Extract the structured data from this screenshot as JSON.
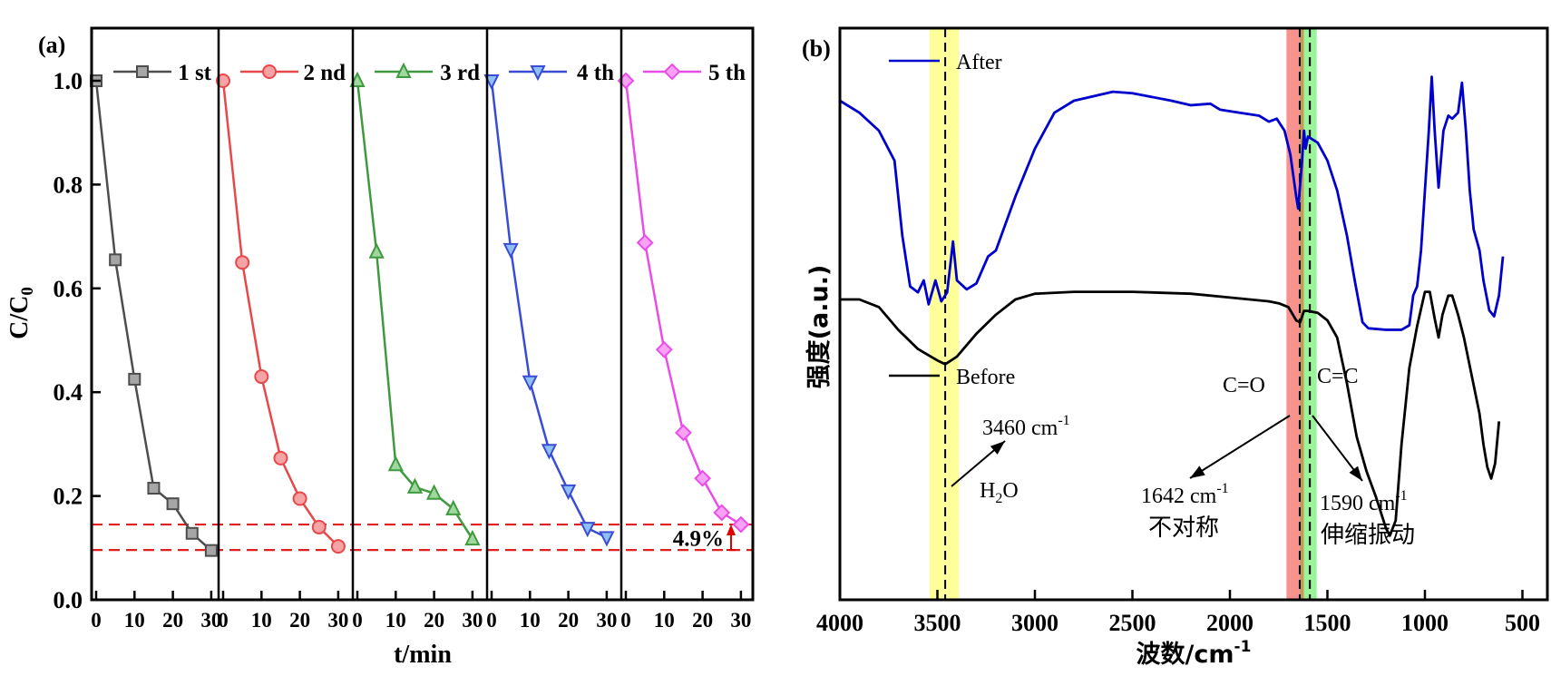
{
  "chart_data": [
    {
      "panel": "(a)",
      "type": "line",
      "ylabel": "C/C0",
      "xlabel": "t/min",
      "ylim": [
        0.0,
        1.1
      ],
      "yticks": [
        "0.0",
        "0.2",
        "0.4",
        "0.6",
        "0.8",
        "1.0"
      ],
      "xticks": [
        "0",
        "10",
        "20",
        "30"
      ],
      "x": [
        0,
        5,
        10,
        15,
        20,
        25,
        30
      ],
      "legend_position": "top-right of each subpanel",
      "series": [
        {
          "name": "1 st",
          "color": "#4d4d4d",
          "fill": "#a6a6a6",
          "marker": "square",
          "values": [
            1.0,
            0.655,
            0.425,
            0.215,
            0.185,
            0.128,
            0.095
          ]
        },
        {
          "name": "2 nd",
          "color": "#e8484a",
          "fill": "#f5a3a4",
          "marker": "circle",
          "values": [
            1.0,
            0.65,
            0.43,
            0.273,
            0.195,
            0.14,
            0.103
          ]
        },
        {
          "name": "3 rd",
          "color": "#3f9a3f",
          "fill": "#9fd89f",
          "marker": "triangle-up",
          "values": [
            1.0,
            0.67,
            0.26,
            0.217,
            0.205,
            0.175,
            0.117
          ]
        },
        {
          "name": "4 th",
          "color": "#3a4cd6",
          "fill": "#8fc0f5",
          "marker": "triangle-down",
          "values": [
            1.0,
            0.675,
            0.42,
            0.288,
            0.21,
            0.138,
            0.12
          ]
        },
        {
          "name": "5 th",
          "color": "#ea4ce8",
          "fill": "#f7a2f4",
          "marker": "diamond",
          "values": [
            1.0,
            0.688,
            0.482,
            0.322,
            0.234,
            0.168,
            0.145
          ]
        }
      ],
      "reference_lines": {
        "values": [
          0.145,
          0.096
        ],
        "color": "#e02020",
        "style": "dashed"
      },
      "annotation": {
        "text": "4.9%",
        "color": "#e00000"
      }
    },
    {
      "panel": "(b)",
      "type": "line",
      "xlabel": "波数/cm-1",
      "ylabel": "强度(a.u.)",
      "xlim": [
        4000,
        440
      ],
      "xticks": [
        "4000",
        "3500",
        "3000",
        "2500",
        "2000",
        "1500",
        "1000",
        "500"
      ],
      "legend": [
        {
          "name": "After",
          "color": "#0000cc"
        },
        {
          "name": "Before",
          "color": "#000000"
        }
      ],
      "series": [
        {
          "name": "After",
          "color": "#0000cc",
          "points": [
            [
              4000,
              0.9
            ],
            [
              3900,
              0.86
            ],
            [
              3800,
              0.8
            ],
            [
              3720,
              0.7
            ],
            [
              3680,
              0.45
            ],
            [
              3640,
              0.28
            ],
            [
              3600,
              0.26
            ],
            [
              3570,
              0.3
            ],
            [
              3545,
              0.22
            ],
            [
              3510,
              0.3
            ],
            [
              3480,
              0.23
            ],
            [
              3450,
              0.26
            ],
            [
              3420,
              0.43
            ],
            [
              3400,
              0.3
            ],
            [
              3350,
              0.27
            ],
            [
              3300,
              0.29
            ],
            [
              3240,
              0.38
            ],
            [
              3200,
              0.4
            ],
            [
              3100,
              0.58
            ],
            [
              3000,
              0.74
            ],
            [
              2900,
              0.86
            ],
            [
              2800,
              0.9
            ],
            [
              2600,
              0.93
            ],
            [
              2500,
              0.925
            ],
            [
              2300,
              0.9
            ],
            [
              2200,
              0.885
            ],
            [
              2100,
              0.89
            ],
            [
              2050,
              0.87
            ],
            [
              1950,
              0.86
            ],
            [
              1850,
              0.85
            ],
            [
              1800,
              0.83
            ],
            [
              1760,
              0.84
            ],
            [
              1720,
              0.8
            ],
            [
              1690,
              0.72
            ],
            [
              1660,
              0.58
            ],
            [
              1650,
              0.54
            ],
            [
              1640,
              0.62
            ],
            [
              1630,
              0.7
            ],
            [
              1620,
              0.8
            ],
            [
              1612,
              0.74
            ],
            [
              1600,
              0.78
            ],
            [
              1550,
              0.76
            ],
            [
              1500,
              0.7
            ],
            [
              1450,
              0.6
            ],
            [
              1400,
              0.45
            ],
            [
              1360,
              0.3
            ],
            [
              1320,
              0.16
            ],
            [
              1290,
              0.14
            ],
            [
              1200,
              0.135
            ],
            [
              1120,
              0.135
            ],
            [
              1080,
              0.15
            ],
            [
              1060,
              0.25
            ],
            [
              1040,
              0.28
            ],
            [
              1020,
              0.4
            ],
            [
              1000,
              0.6
            ],
            [
              980,
              0.8
            ],
            [
              965,
              0.98
            ],
            [
              950,
              0.8
            ],
            [
              930,
              0.61
            ],
            [
              905,
              0.8
            ],
            [
              880,
              0.85
            ],
            [
              860,
              0.84
            ],
            [
              830,
              0.86
            ],
            [
              810,
              0.96
            ],
            [
              790,
              0.8
            ],
            [
              770,
              0.6
            ],
            [
              750,
              0.47
            ],
            [
              720,
              0.4
            ],
            [
              700,
              0.3
            ],
            [
              670,
              0.2
            ],
            [
              645,
              0.18
            ],
            [
              620,
              0.25
            ],
            [
              600,
              0.38
            ]
          ]
        },
        {
          "name": "Before",
          "color": "#000000",
          "points": [
            [
              4000,
              0.0
            ],
            [
              3900,
              0.0
            ],
            [
              3800,
              -0.02
            ],
            [
              3700,
              -0.08
            ],
            [
              3600,
              -0.13
            ],
            [
              3500,
              -0.16
            ],
            [
              3460,
              -0.17
            ],
            [
              3400,
              -0.15
            ],
            [
              3300,
              -0.09
            ],
            [
              3200,
              -0.04
            ],
            [
              3100,
              0.0
            ],
            [
              3000,
              0.015
            ],
            [
              2800,
              0.02
            ],
            [
              2500,
              0.02
            ],
            [
              2200,
              0.015
            ],
            [
              2000,
              0.005
            ],
            [
              1800,
              -0.005
            ],
            [
              1750,
              -0.01
            ],
            [
              1700,
              -0.02
            ],
            [
              1660,
              -0.055
            ],
            [
              1640,
              -0.06
            ],
            [
              1620,
              -0.03
            ],
            [
              1600,
              -0.03
            ],
            [
              1550,
              -0.035
            ],
            [
              1500,
              -0.055
            ],
            [
              1450,
              -0.1
            ],
            [
              1400,
              -0.22
            ],
            [
              1350,
              -0.36
            ],
            [
              1300,
              -0.45
            ],
            [
              1250,
              -0.52
            ],
            [
              1200,
              -0.6
            ],
            [
              1180,
              -0.62
            ],
            [
              1150,
              -0.58
            ],
            [
              1120,
              -0.38
            ],
            [
              1080,
              -0.18
            ],
            [
              1040,
              -0.07
            ],
            [
              1000,
              0.02
            ],
            [
              975,
              0.02
            ],
            [
              950,
              -0.05
            ],
            [
              930,
              -0.1
            ],
            [
              910,
              -0.04
            ],
            [
              880,
              0.01
            ],
            [
              860,
              0.01
            ],
            [
              830,
              -0.04
            ],
            [
              800,
              -0.1
            ],
            [
              760,
              -0.2
            ],
            [
              720,
              -0.3
            ],
            [
              700,
              -0.38
            ],
            [
              680,
              -0.44
            ],
            [
              660,
              -0.47
            ],
            [
              640,
              -0.43
            ],
            [
              620,
              -0.32
            ]
          ]
        }
      ],
      "highlight_bands": [
        {
          "range": [
            3540,
            3390
          ],
          "color": "#ffff99",
          "label": "H2O",
          "center": 3460
        },
        {
          "range": [
            1710,
            1642
          ],
          "color": "#f7928f",
          "label": "C=O",
          "center": 1642
        },
        {
          "range": [
            1642,
            1620
          ],
          "color": "#c49a5a"
        },
        {
          "range": [
            1620,
            1555
          ],
          "color": "#99f599",
          "label": "C=C",
          "center": 1590
        }
      ],
      "dashed_lines": [
        3460,
        1642,
        1590
      ],
      "annotations": [
        {
          "text": "3460 cm",
          "sup": "-1",
          "note": "H",
          "sub": "2",
          "tail": "O"
        },
        {
          "text": "C=O"
        },
        {
          "text": "C=C"
        },
        {
          "text": "1642 cm",
          "sup": "-1",
          "cn": "不对称"
        },
        {
          "text": "1590 cm",
          "sup": "-1",
          "cn": "伸缩振动"
        }
      ]
    }
  ]
}
